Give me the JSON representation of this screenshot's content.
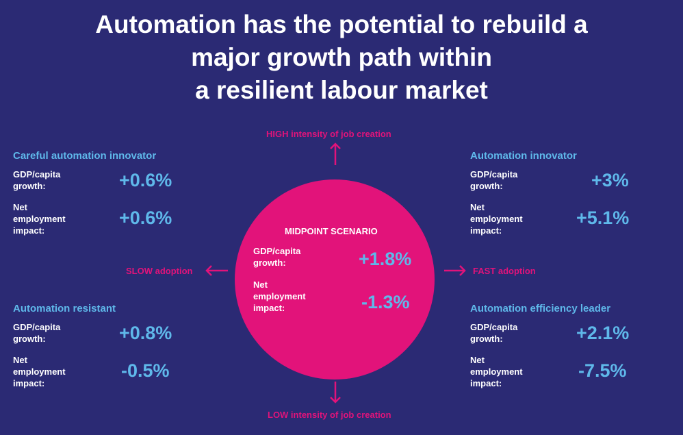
{
  "title": {
    "line1": "Automation has the potential to rebuild a",
    "line2": "major growth path within",
    "line3": "a resilient labour market"
  },
  "axes": {
    "top": "HIGH intensity of job creation",
    "bottom": "LOW intensity of job creation",
    "left": "SLOW adoption",
    "right": "FAST adoption"
  },
  "midpoint": {
    "title": "MIDPOINT SCENARIO",
    "gdp_label": "GDP/capita growth:",
    "gdp_value": "+1.8%",
    "emp_label": "Net employment impact:",
    "emp_value": "-1.3%"
  },
  "quadrants": {
    "top_left": {
      "title": "Careful automation innovator",
      "gdp_label": "GDP/capita growth:",
      "gdp_value": "+0.6%",
      "emp_label": "Net employment impact:",
      "emp_value": "+0.6%"
    },
    "top_right": {
      "title": "Automation innovator",
      "gdp_label": "GDP/capita growth:",
      "gdp_value": "+3%",
      "emp_label": "Net employment impact:",
      "emp_value": "+5.1%"
    },
    "bottom_left": {
      "title": "Automation resistant",
      "gdp_label": "GDP/capita growth:",
      "gdp_value": "+0.8%",
      "emp_label": "Net employment impact:",
      "emp_value": "-0.5%"
    },
    "bottom_right": {
      "title": "Automation efficiency leader",
      "gdp_label": "GDP/capita growth:",
      "gdp_value": "+2.1%",
      "emp_label": "Net employment impact:",
      "emp_value": "-7.5%"
    }
  },
  "colors": {
    "background": "#2b2a74",
    "accent_magenta": "#e2137a",
    "accent_blue": "#5fb8ea",
    "text": "#ffffff"
  }
}
